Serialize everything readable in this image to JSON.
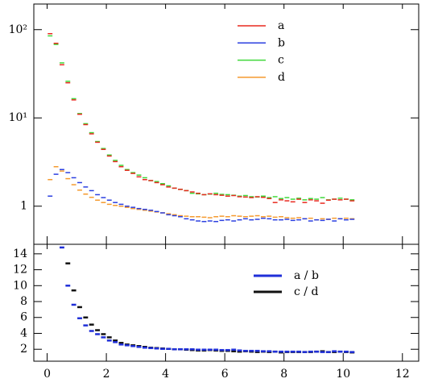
{
  "chart_data": [
    {
      "type": "step-marker",
      "log_y": true,
      "x": [
        0.1,
        0.3,
        0.5,
        0.7,
        0.9,
        1.1,
        1.3,
        1.5,
        1.7,
        1.9,
        2.1,
        2.3,
        2.5,
        2.7,
        2.9,
        3.1,
        3.3,
        3.5,
        3.7,
        3.9,
        4.1,
        4.3,
        4.5,
        4.7,
        4.9,
        5.1,
        5.3,
        5.5,
        5.7,
        5.9,
        6.1,
        6.3,
        6.5,
        6.7,
        6.9,
        7.1,
        7.3,
        7.5,
        7.7,
        7.9,
        8.1,
        8.3,
        8.5,
        8.7,
        8.9,
        9.1,
        9.3,
        9.5,
        9.7,
        9.9,
        10.1,
        10.3
      ],
      "xlim": [
        -0.45,
        12.55
      ],
      "xticks": [
        0,
        2,
        4,
        6,
        8,
        10,
        12
      ],
      "ylim": [
        0.37,
        195
      ],
      "yticks": [
        {
          "value": 100,
          "label": "10²"
        },
        {
          "value": 10,
          "label": "10¹"
        },
        1
      ],
      "series": [
        {
          "name": "a",
          "color": "#e8291f",
          "values": [
            90,
            70,
            40,
            25,
            16,
            11,
            8.4,
            6.6,
            5.3,
            4.4,
            3.7,
            3.2,
            2.8,
            2.55,
            2.35,
            2.15,
            2.0,
            1.95,
            1.85,
            1.75,
            1.65,
            1.6,
            1.55,
            1.5,
            1.45,
            1.4,
            1.35,
            1.38,
            1.35,
            1.33,
            1.3,
            1.32,
            1.28,
            1.27,
            1.25,
            1.28,
            1.26,
            1.22,
            1.1,
            1.18,
            1.15,
            1.12,
            1.2,
            1.1,
            1.18,
            1.15,
            1.08,
            1.17,
            1.2,
            1.18,
            1.2,
            1.15
          ]
        },
        {
          "name": "b",
          "color": "#2b3fe0",
          "values": [
            1.3,
            2.3,
            2.6,
            2.4,
            2.1,
            1.85,
            1.65,
            1.5,
            1.35,
            1.25,
            1.17,
            1.1,
            1.05,
            1.0,
            0.97,
            0.94,
            0.92,
            0.9,
            0.87,
            0.84,
            0.8,
            0.78,
            0.76,
            0.72,
            0.7,
            0.68,
            0.67,
            0.68,
            0.67,
            0.69,
            0.7,
            0.68,
            0.7,
            0.72,
            0.7,
            0.71,
            0.73,
            0.72,
            0.7,
            0.7,
            0.71,
            0.69,
            0.7,
            0.72,
            0.68,
            0.7,
            0.69,
            0.71,
            0.68,
            0.72,
            0.7,
            0.71
          ]
        },
        {
          "name": "c",
          "color": "#3fd83a",
          "values": [
            85,
            68,
            42,
            26,
            16.5,
            11.2,
            8.6,
            6.8,
            5.4,
            4.5,
            3.8,
            3.3,
            2.9,
            2.6,
            2.4,
            2.25,
            2.1,
            1.95,
            1.9,
            1.8,
            1.7,
            1.6,
            1.55,
            1.5,
            1.4,
            1.38,
            1.35,
            1.37,
            1.4,
            1.36,
            1.35,
            1.33,
            1.3,
            1.32,
            1.28,
            1.27,
            1.3,
            1.25,
            1.28,
            1.22,
            1.25,
            1.2,
            1.23,
            1.18,
            1.22,
            1.2,
            1.25,
            1.18,
            1.2,
            1.23,
            1.2,
            1.18
          ]
        },
        {
          "name": "d",
          "color": "#f59a2e",
          "values": [
            2.0,
            2.8,
            2.5,
            2.05,
            1.75,
            1.52,
            1.37,
            1.26,
            1.17,
            1.1,
            1.05,
            1.02,
            1.0,
            0.97,
            0.94,
            0.92,
            0.9,
            0.88,
            0.86,
            0.84,
            0.82,
            0.8,
            0.78,
            0.77,
            0.76,
            0.76,
            0.75,
            0.74,
            0.76,
            0.77,
            0.76,
            0.78,
            0.77,
            0.76,
            0.77,
            0.78,
            0.76,
            0.77,
            0.75,
            0.76,
            0.74,
            0.73,
            0.74,
            0.72,
            0.73,
            0.7,
            0.72,
            0.71,
            0.73,
            0.72,
            0.73,
            0.72
          ]
        }
      ]
    },
    {
      "type": "step-marker",
      "log_y": false,
      "x": [
        0.1,
        0.3,
        0.5,
        0.7,
        0.9,
        1.1,
        1.3,
        1.5,
        1.7,
        1.9,
        2.1,
        2.3,
        2.5,
        2.7,
        2.9,
        3.1,
        3.3,
        3.5,
        3.7,
        3.9,
        4.1,
        4.3,
        4.5,
        4.7,
        4.9,
        5.1,
        5.3,
        5.5,
        5.7,
        5.9,
        6.1,
        6.3,
        6.5,
        6.7,
        6.9,
        7.1,
        7.3,
        7.5,
        7.7,
        7.9,
        8.1,
        8.3,
        8.5,
        8.7,
        8.9,
        9.1,
        9.3,
        9.5,
        9.7,
        9.9,
        10.1,
        10.3
      ],
      "xlim": [
        -0.45,
        12.55
      ],
      "xticks": [
        0,
        2,
        4,
        6,
        8,
        10,
        12
      ],
      "ylim": [
        0.5,
        15.2
      ],
      "yticks": [
        2,
        4,
        6,
        8,
        10,
        12,
        14
      ],
      "series": [
        {
          "name": "a / b",
          "color": "#1f2fd8",
          "values": [
            null,
            null,
            14.8,
            10,
            7.6,
            5.9,
            5.0,
            4.3,
            3.9,
            3.5,
            3.1,
            2.9,
            2.6,
            2.5,
            2.4,
            2.3,
            2.2,
            2.15,
            2.1,
            2.05,
            2.05,
            2.0,
            2.0,
            2.0,
            2.0,
            1.95,
            1.95,
            1.95,
            1.95,
            1.9,
            1.9,
            1.95,
            1.85,
            1.8,
            1.8,
            1.8,
            1.75,
            1.75,
            1.7,
            1.7,
            1.7,
            1.7,
            1.7,
            1.65,
            1.7,
            1.7,
            1.65,
            1.65,
            1.75,
            1.7,
            1.7,
            1.65
          ]
        },
        {
          "name": "c / d",
          "color": "#111111",
          "values": [
            null,
            null,
            null,
            12.8,
            9.4,
            7.3,
            6.0,
            5.1,
            4.4,
            3.9,
            3.5,
            3.1,
            2.8,
            2.6,
            2.5,
            2.4,
            2.3,
            2.2,
            2.15,
            2.1,
            2.05,
            2.0,
            2.0,
            1.95,
            1.9,
            1.85,
            1.85,
            1.9,
            1.85,
            1.8,
            1.8,
            1.75,
            1.7,
            1.75,
            1.7,
            1.65,
            1.7,
            1.65,
            1.7,
            1.6,
            1.65,
            1.65,
            1.65,
            1.65,
            1.65,
            1.7,
            1.75,
            1.65,
            1.65,
            1.7,
            1.65,
            1.6
          ]
        }
      ]
    }
  ]
}
